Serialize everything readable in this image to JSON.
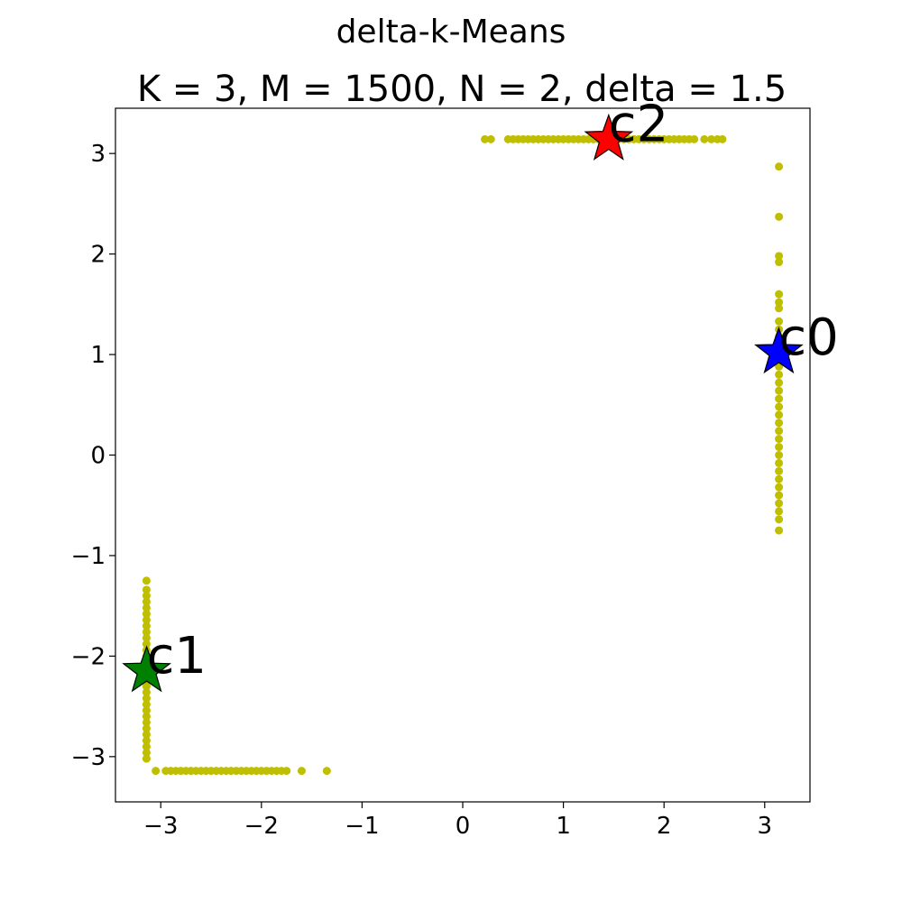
{
  "figure": {
    "suptitle": "delta-k-Means",
    "title": "K = 3, M = 1500, N = 2, delta = 1.5"
  },
  "chart_data": {
    "type": "scatter",
    "title": "K = 3, M = 1500, N = 2, delta = 1.5",
    "suptitle": "delta-k-Means",
    "xlabel": "",
    "ylabel": "",
    "xlim": [
      -3.45,
      3.45
    ],
    "ylim": [
      -3.45,
      3.45
    ],
    "xticks": [
      -3,
      -2,
      -1,
      0,
      1,
      2,
      3
    ],
    "yticks": [
      -3,
      -2,
      -1,
      0,
      1,
      2,
      3
    ],
    "xtick_labels": [
      "−3",
      "−2",
      "−1",
      "0",
      "1",
      "2",
      "3"
    ],
    "ytick_labels": [
      "−3",
      "−2",
      "−1",
      "0",
      "1",
      "2",
      "3"
    ],
    "grid": false,
    "point_color": "#bfbf00",
    "point_groups": [
      {
        "x": 3.14159,
        "y_values": [
          2.87,
          2.37,
          1.98,
          1.92,
          1.6,
          1.52,
          1.46,
          1.33,
          1.25,
          1.18,
          1.1,
          1.02,
          0.95,
          0.88,
          0.8,
          0.72,
          0.64,
          0.56,
          0.48,
          0.4,
          0.32,
          0.24,
          0.16,
          0.08,
          0.0,
          -0.08,
          -0.16,
          -0.24,
          -0.32,
          -0.4,
          -0.48,
          -0.56,
          -0.64,
          -0.75
        ]
      },
      {
        "y": 3.14159,
        "x_values": [
          0.22,
          0.28,
          0.45,
          0.5,
          0.55,
          0.6,
          0.65,
          0.7,
          0.75,
          0.8,
          0.85,
          0.9,
          0.95,
          1.0,
          1.05,
          1.1,
          1.15,
          1.2,
          1.25,
          1.3,
          1.35,
          1.4,
          1.45,
          1.5,
          1.55,
          1.6,
          1.65,
          1.7,
          1.75,
          1.8,
          1.85,
          1.9,
          1.95,
          2.0,
          2.05,
          2.1,
          2.15,
          2.2,
          2.25,
          2.3,
          2.4,
          2.47,
          2.53,
          2.58
        ]
      },
      {
        "x": -3.14159,
        "y_values": [
          -1.25,
          -1.34,
          -1.4,
          -1.46,
          -1.52,
          -1.58,
          -1.64,
          -1.7,
          -1.76,
          -1.82,
          -1.88,
          -1.94,
          -2.0,
          -2.06,
          -2.12,
          -2.18,
          -2.24,
          -2.3,
          -2.36,
          -2.42,
          -2.48,
          -2.54,
          -2.6,
          -2.66,
          -2.72,
          -2.78,
          -2.84,
          -2.9,
          -2.96,
          -3.02
        ]
      },
      {
        "y": -3.14159,
        "x_values": [
          -3.05,
          -2.95,
          -2.9,
          -2.85,
          -2.8,
          -2.75,
          -2.7,
          -2.65,
          -2.6,
          -2.55,
          -2.5,
          -2.45,
          -2.4,
          -2.35,
          -2.3,
          -2.25,
          -2.2,
          -2.15,
          -2.1,
          -2.05,
          -2.0,
          -1.95,
          -1.9,
          -1.85,
          -1.8,
          -1.75,
          -1.6,
          -1.35
        ]
      }
    ],
    "centroids": [
      {
        "label": "c0",
        "x": 3.14,
        "y": 1.02,
        "color": "#0000ff"
      },
      {
        "label": "c1",
        "x": -3.14,
        "y": -2.15,
        "color": "#008000"
      },
      {
        "label": "c2",
        "x": 1.45,
        "y": 3.14,
        "color": "#ff0000"
      }
    ]
  }
}
